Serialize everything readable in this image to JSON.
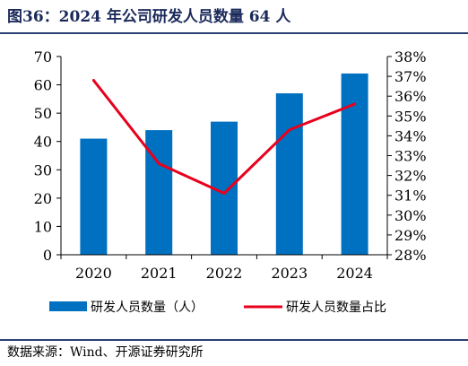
{
  "header": {
    "title": "图36：2024 年公司研发人员数量 64 人"
  },
  "footer": {
    "source": "数据来源：Wind、开源证券研究所"
  },
  "colors": {
    "bar": "#0070c0",
    "line": "#e8001c",
    "title": "#1b2a5a"
  },
  "chart_data": {
    "type": "bar+line",
    "categories": [
      "2020",
      "2021",
      "2022",
      "2023",
      "2024"
    ],
    "series": [
      {
        "name": "研发人员数量（人）",
        "type": "bar",
        "axis": "left",
        "values": [
          41,
          44,
          47,
          57,
          64
        ]
      },
      {
        "name": "研发人员数量占比",
        "type": "line",
        "axis": "right",
        "values": [
          36.8,
          32.6,
          31.1,
          34.3,
          35.6
        ]
      }
    ],
    "y_left": {
      "min": 0,
      "max": 70,
      "ticks": [
        "0",
        "10",
        "20",
        "30",
        "40",
        "50",
        "60",
        "70"
      ]
    },
    "y_right": {
      "min": 28,
      "max": 38,
      "ticks": [
        "28%",
        "29%",
        "30%",
        "31%",
        "32%",
        "33%",
        "34%",
        "35%",
        "36%",
        "37%",
        "38%"
      ]
    },
    "legend_position": "bottom",
    "grid": false
  }
}
